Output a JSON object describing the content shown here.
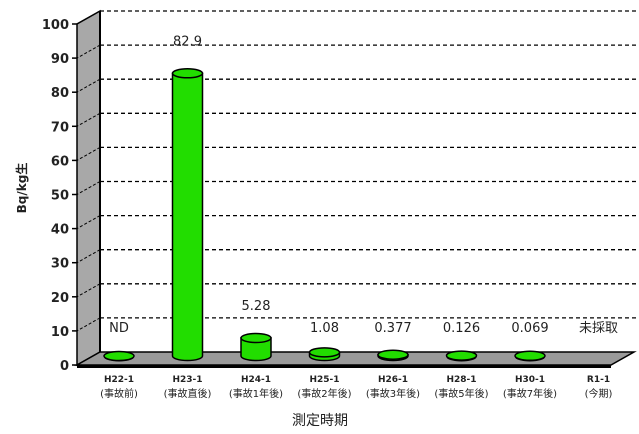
{
  "chart_data": {
    "type": "bar",
    "ylabel": "Bq/kg生",
    "xlabel": "測定時期",
    "ylim": [
      0,
      100
    ],
    "yticks": [
      0,
      10,
      20,
      30,
      40,
      50,
      60,
      70,
      80,
      90,
      100
    ],
    "grid": true,
    "categories": [
      {
        "line1": "H22-1",
        "line2": "(事故前)"
      },
      {
        "line1": "H23-1",
        "line2": "(事故直後)"
      },
      {
        "line1": "H24-1",
        "line2": "(事故1年後)"
      },
      {
        "line1": "H25-1",
        "line2": "(事故2年後)"
      },
      {
        "line1": "H26-1",
        "line2": "(事故3年後)"
      },
      {
        "line1": "H28-1",
        "line2": "(事故5年後)"
      },
      {
        "line1": "H30-1",
        "line2": "(事故7年後)"
      },
      {
        "line1": "R1-1",
        "line2": "(今期)"
      }
    ],
    "values": [
      0,
      82.9,
      5.28,
      1.08,
      0.377,
      0.126,
      0.069,
      null
    ],
    "data_labels": [
      "ND",
      "82.9",
      "5.28",
      "1.08",
      "0.377",
      "0.126",
      "0.069",
      "未採取"
    ],
    "bar_color": "#22dd00"
  }
}
